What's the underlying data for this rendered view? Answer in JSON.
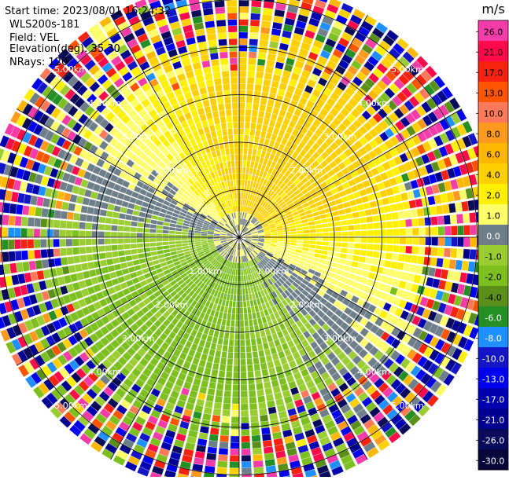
{
  "chart_data": {
    "type": "heatmap",
    "subtype": "radar-ppi",
    "header": {
      "start_time": "Start time: 2023/08/01 16:24:32",
      "instrument": "WLS200s-181",
      "field": "Field: VEL",
      "elevation": "Elevation(deg): 35.30",
      "nrays": "NRays: 120"
    },
    "range_rings_km": [
      1,
      2,
      3,
      4,
      5
    ],
    "max_range_km": 5.4,
    "ring_labels_upper_left": [
      "2.00km",
      "3.00km",
      "4.00km",
      "5.00km"
    ],
    "ring_labels_upper_right": [
      "2.00km",
      "3.00km",
      "4.00km",
      "5.00km"
    ],
    "ring_labels_lower_left": [
      "1.00km",
      "2.00km",
      "3.00km",
      "4.00km",
      "5.00km"
    ],
    "ring_labels_lower_right": [
      "1.00km",
      "2.00km",
      "3.00km",
      "4.00km",
      "5.00km"
    ],
    "n_rays": 120,
    "n_gates": 40,
    "colorbar": {
      "unit": "m/s",
      "ticks": [
        "26.0",
        "21.0",
        "17.0",
        "13.0",
        "10.0",
        "8.0",
        "6.0",
        "4.0",
        "2.0",
        "1.0",
        "0.0",
        "-1.0",
        "-2.0",
        "-4.0",
        "-6.0",
        "-8.0",
        "-10.0",
        "-13.0",
        "-17.0",
        "-21.0",
        "-26.0",
        "-30.0"
      ],
      "colors": [
        "#f33ca8",
        "#ff0a4a",
        "#f5230f",
        "#ff5500",
        "#ff7a5a",
        "#ff9a1e",
        "#ffb800",
        "#ffd000",
        "#fff000",
        "#ffff6a",
        "#6e7f8a",
        "#9acd32",
        "#7cbf1e",
        "#5a8f1a",
        "#248f24",
        "#1e90ff",
        "#1515c8",
        "#0000ee",
        "#0000b0",
        "#00008f",
        "#0a0a5a",
        "#06063a"
      ]
    },
    "wind": {
      "speed_ms": 2.8,
      "direction_to_deg": 30
    }
  }
}
